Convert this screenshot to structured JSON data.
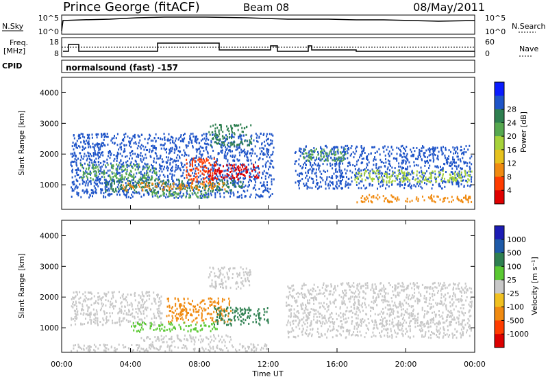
{
  "header": {
    "station": "Prince George (fitACF)",
    "beam": "Beam 08",
    "date": "08/May/2011"
  },
  "params": {
    "nsky_label": "N.Sky",
    "nsky_ticks": [
      "10^5",
      "10^0"
    ],
    "nsearch_label": "N.Search",
    "nsearch_ticks": [
      "10^5",
      "10^0"
    ],
    "freq_label_1": "Freq.",
    "freq_label_2": "[MHz]",
    "freq_ticks": [
      "18",
      "8"
    ],
    "nave_label": "Nave",
    "nave_ticks": [
      "60",
      "0"
    ],
    "cpid_label": "CPID",
    "cpid_value": "normalsound (fast) -157"
  },
  "chart_data": [
    {
      "type": "heatmap",
      "quantity": "power",
      "ylabel": "Slant Range [km]",
      "yticks": [
        "1000",
        "2000",
        "3000",
        "4000"
      ],
      "ylim": [
        200,
        4500
      ],
      "xlim": [
        0,
        24
      ],
      "colorbar_label": "Power [dB]",
      "colorbar_ticks": [
        "4",
        "8",
        "12",
        "16",
        "20",
        "24",
        "28"
      ],
      "colorbar_colors": [
        "#0a1cff",
        "#1e54c8",
        "#2e7f50",
        "#56a84f",
        "#a6d23a",
        "#e6c21e",
        "#f08a10",
        "#ff3c00",
        "#e00000"
      ],
      "blobs": [
        {
          "t0": 0.5,
          "t1": 12.3,
          "r0": 600,
          "r1": 2700,
          "color": "#1e54c8"
        },
        {
          "t0": 1.0,
          "t1": 5.5,
          "r0": 1200,
          "r1": 1700,
          "color": "#56a84f"
        },
        {
          "t0": 2.5,
          "t1": 10.5,
          "r0": 800,
          "r1": 1200,
          "color": "#2e7f50"
        },
        {
          "t0": 3.5,
          "t1": 9.5,
          "r0": 850,
          "r1": 1100,
          "color": "#f08a10"
        },
        {
          "t0": 7.2,
          "t1": 9.0,
          "r0": 1100,
          "r1": 1900,
          "color": "#ff3c00"
        },
        {
          "t0": 8.5,
          "t1": 11.5,
          "r0": 1200,
          "r1": 1700,
          "color": "#e00000"
        },
        {
          "t0": 5.0,
          "t1": 8.5,
          "r0": 600,
          "r1": 800,
          "color": "#56a84f"
        },
        {
          "t0": 13.5,
          "t1": 23.8,
          "r0": 900,
          "r1": 2300,
          "color": "#1e54c8"
        },
        {
          "t0": 14.0,
          "t1": 16.5,
          "r0": 1800,
          "r1": 2200,
          "color": "#56a84f"
        },
        {
          "t0": 17.0,
          "t1": 23.8,
          "r0": 1100,
          "r1": 1500,
          "color": "#a6d23a"
        },
        {
          "t0": 17.0,
          "t1": 23.8,
          "r0": 450,
          "r1": 700,
          "color": "#f08a10"
        },
        {
          "t0": 8.5,
          "t1": 11.0,
          "r0": 2300,
          "r1": 3000,
          "color": "#2e7f50"
        }
      ]
    },
    {
      "type": "heatmap",
      "quantity": "velocity",
      "ylabel": "Slant Range [km]",
      "yticks": [
        "1000",
        "2000",
        "3000",
        "4000"
      ],
      "ylim": [
        200,
        4500
      ],
      "xlim": [
        0,
        24
      ],
      "xticks": [
        "00:00",
        "04:00",
        "08:00",
        "12:00",
        "16:00",
        "20:00",
        "00:00"
      ],
      "xlabel": "Time UT",
      "colorbar_label": "Velocity [m s⁻¹]",
      "colorbar_ticks": [
        "1000",
        "500",
        "100",
        "25",
        "-25",
        "-100",
        "-500",
        "-1000"
      ],
      "colorbar_colors": [
        "#1c1cb4",
        "#1e5aa8",
        "#2e7f50",
        "#5ac832",
        "#c8c8c8",
        "#f0c020",
        "#f08a10",
        "#ff3c00",
        "#dc0000"
      ],
      "blobs": [
        {
          "t0": 0.5,
          "t1": 5.8,
          "r0": 1100,
          "r1": 2200,
          "color": "#c8c8c8"
        },
        {
          "t0": 6.0,
          "t1": 9.8,
          "r0": 1200,
          "r1": 2000,
          "color": "#f08a10"
        },
        {
          "t0": 8.8,
          "t1": 12.0,
          "r0": 1100,
          "r1": 1700,
          "color": "#2e7f50"
        },
        {
          "t0": 4.0,
          "t1": 9.0,
          "r0": 900,
          "r1": 1200,
          "color": "#5ac832"
        },
        {
          "t0": 4.5,
          "t1": 10.0,
          "r0": 550,
          "r1": 800,
          "color": "#c8c8c8"
        },
        {
          "t0": 13.0,
          "t1": 23.8,
          "r0": 700,
          "r1": 2500,
          "color": "#c8c8c8"
        },
        {
          "t0": 8.5,
          "t1": 11.0,
          "r0": 2300,
          "r1": 3000,
          "color": "#c8c8c8"
        },
        {
          "t0": 0.5,
          "t1": 12.0,
          "r0": 250,
          "r1": 500,
          "color": "#c8c8c8"
        }
      ]
    }
  ]
}
